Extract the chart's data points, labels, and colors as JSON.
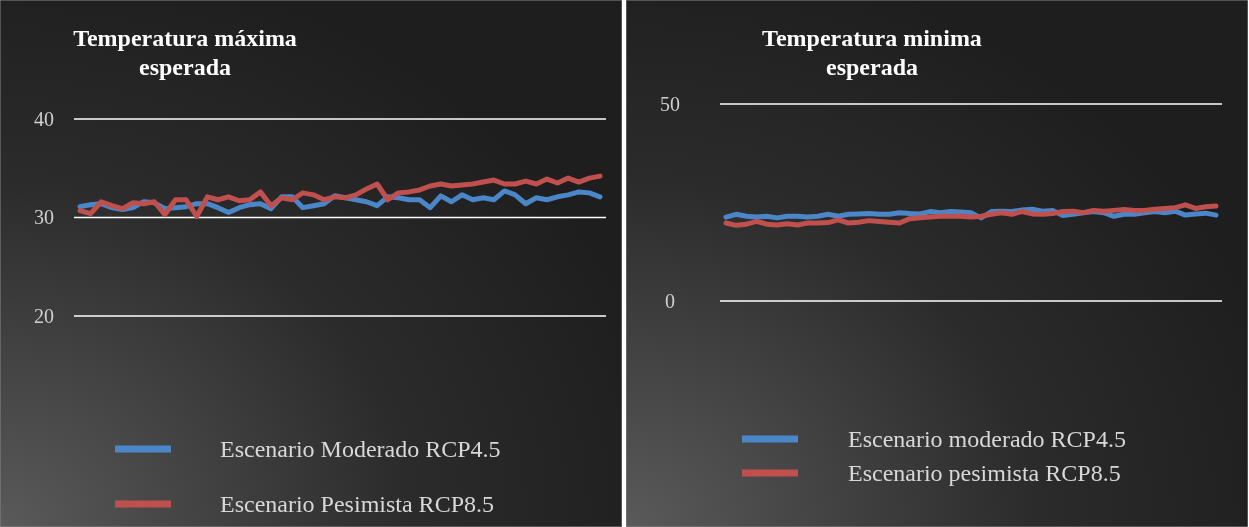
{
  "chart_data": [
    {
      "type": "line",
      "title": "Temperatura máxima esperada",
      "categories": [
        null,
        null,
        null,
        null,
        null,
        null,
        null,
        null,
        null,
        null,
        null,
        null,
        null,
        null,
        null,
        null,
        null,
        null,
        null,
        null,
        null,
        null,
        null,
        null,
        null,
        null,
        null,
        null,
        null,
        null,
        null,
        null,
        null,
        null,
        null,
        null,
        null,
        null,
        null,
        null,
        null,
        null,
        null,
        null,
        null,
        null,
        null,
        null,
        null,
        null
      ],
      "series": [
        {
          "name": "Escenario Moderado RCP4.5",
          "color": "#4a86c8",
          "values": [
            31.1,
            31.3,
            31.4,
            31.0,
            30.8,
            31.0,
            31.6,
            31.5,
            30.9,
            31.0,
            31.1,
            31.4,
            31.4,
            31.0,
            30.5,
            31.0,
            31.3,
            31.4,
            30.9,
            32.1,
            32.1,
            31.0,
            31.2,
            31.4,
            32.2,
            32.0,
            31.8,
            31.6,
            31.2,
            32.1,
            32.0,
            31.8,
            31.8,
            31.0,
            32.2,
            31.6,
            32.3,
            31.8,
            32.0,
            31.8,
            32.7,
            32.3,
            31.4,
            32.0,
            31.8,
            32.1,
            32.3,
            32.6,
            32.5,
            32.1
          ]
        },
        {
          "name": "Escenario Pesimista RCP8.5",
          "color": "#c0504d",
          "values": [
            30.7,
            30.4,
            31.6,
            31.2,
            30.9,
            31.5,
            31.4,
            31.6,
            30.3,
            31.8,
            31.8,
            30.1,
            32.1,
            31.8,
            32.1,
            31.7,
            31.8,
            32.6,
            31.2,
            32.0,
            31.8,
            32.5,
            32.3,
            31.8,
            32.1,
            32.0,
            32.3,
            32.9,
            33.4,
            31.8,
            32.5,
            32.6,
            32.8,
            33.2,
            33.4,
            33.2,
            33.3,
            33.4,
            33.6,
            33.8,
            33.4,
            33.4,
            33.7,
            33.4,
            33.9,
            33.5,
            34.0,
            33.6,
            34.0,
            34.2
          ]
        }
      ],
      "ylim": [
        20,
        40
      ],
      "yticks": [
        20,
        30,
        40
      ],
      "grid": "y",
      "legend": "bottom",
      "tick_labels": "y",
      "line_style": "solid",
      "marker": "none"
    },
    {
      "type": "line",
      "title": "Temperatura minima esperada",
      "categories": [
        null,
        null,
        null,
        null,
        null,
        null,
        null,
        null,
        null,
        null,
        null,
        null,
        null,
        null,
        null,
        null,
        null,
        null,
        null,
        null,
        null,
        null,
        null,
        null,
        null,
        null,
        null,
        null,
        null,
        null,
        null,
        null,
        null,
        null,
        null,
        null,
        null,
        null,
        null,
        null,
        null,
        null,
        null,
        null,
        null,
        null,
        null,
        null,
        null
      ],
      "series": [
        {
          "name": "Escenario moderado RCP4.5",
          "color": "#4a86c8",
          "values": [
            21.3,
            22.0,
            21.5,
            21.3,
            21.5,
            21.1,
            21.5,
            21.5,
            21.3,
            21.5,
            22.0,
            21.5,
            22.0,
            22.1,
            22.2,
            22.0,
            22.0,
            22.4,
            22.2,
            22.1,
            22.7,
            22.4,
            22.7,
            22.6,
            22.4,
            21.1,
            22.7,
            22.8,
            22.7,
            23.1,
            23.3,
            22.8,
            23.0,
            21.7,
            22.0,
            22.4,
            22.7,
            22.4,
            21.5,
            22.0,
            22.0,
            22.4,
            22.7,
            22.4,
            22.8,
            21.8,
            22.1,
            22.3,
            21.8
          ]
        },
        {
          "name": "Escenario pesimista RCP8.5",
          "color": "#c0504d",
          "values": [
            19.8,
            19.2,
            19.5,
            20.2,
            19.5,
            19.3,
            19.6,
            19.3,
            19.8,
            19.8,
            19.9,
            20.6,
            19.8,
            20.0,
            20.4,
            20.2,
            20.0,
            19.8,
            20.9,
            21.1,
            21.3,
            21.5,
            21.5,
            21.5,
            21.3,
            21.5,
            22.0,
            22.4,
            22.0,
            22.7,
            22.1,
            22.0,
            22.2,
            22.7,
            22.8,
            22.4,
            23.0,
            22.8,
            23.0,
            23.2,
            23.0,
            23.0,
            23.3,
            23.5,
            23.7,
            24.4,
            23.5,
            23.9,
            24.1
          ]
        }
      ],
      "ylim": [
        0,
        50
      ],
      "yticks": [
        0,
        50
      ],
      "grid": "y",
      "legend": "bottom",
      "tick_labels": "y",
      "line_style": "solid",
      "marker": "none"
    }
  ]
}
